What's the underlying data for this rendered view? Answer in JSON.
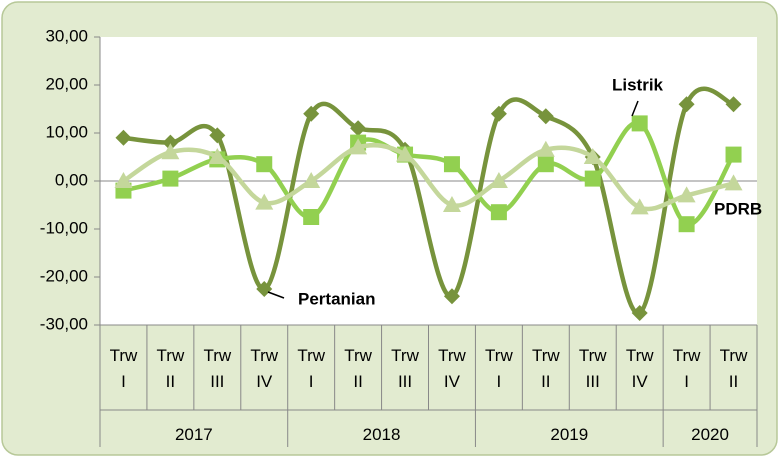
{
  "chart_data": {
    "type": "line",
    "categories": [
      "Trw I",
      "Trw II",
      "Trw III",
      "Trw IV",
      "Trw I",
      "Trw II",
      "Trw III",
      "Trw IV",
      "Trw I",
      "Trw II",
      "Trw III",
      "Trw IV",
      "Trw I",
      "Trw II"
    ],
    "year_groups": [
      {
        "label": "2017",
        "span": 4
      },
      {
        "label": "2018",
        "span": 4
      },
      {
        "label": "2019",
        "span": 4
      },
      {
        "label": "2020",
        "span": 2
      }
    ],
    "series": [
      {
        "name": "Pertanian",
        "color": "#77933c",
        "marker": "diamond",
        "values": [
          9,
          8,
          9.5,
          -22.5,
          14,
          11,
          6.5,
          -24,
          14,
          13.5,
          5,
          -27.5,
          16,
          16
        ]
      },
      {
        "name": "Listrik",
        "color": "#92d050",
        "marker": "square",
        "values": [
          -2,
          0.5,
          4.5,
          3.5,
          -7.5,
          8,
          5.5,
          3.5,
          -6.5,
          3.5,
          0.5,
          12,
          -9,
          5.5
        ]
      },
      {
        "name": "PDRB",
        "color": "#c4d79b",
        "marker": "triangle",
        "values": [
          0,
          6,
          5,
          -4.5,
          0,
          7,
          5.5,
          -5,
          0,
          6.5,
          5,
          -5.5,
          -3,
          -0.5
        ]
      }
    ],
    "ylim": [
      -30,
      30
    ],
    "yticks": [
      {
        "value": -30,
        "label": "-30,00"
      },
      {
        "value": -20,
        "label": "-20,00"
      },
      {
        "value": -10,
        "label": "-10,00"
      },
      {
        "value": 0,
        "label": "0,00"
      },
      {
        "value": 10,
        "label": "10,00"
      },
      {
        "value": 20,
        "label": "20,00"
      },
      {
        "value": 30,
        "label": "30,00"
      }
    ],
    "grid": false,
    "smooth": true
  }
}
